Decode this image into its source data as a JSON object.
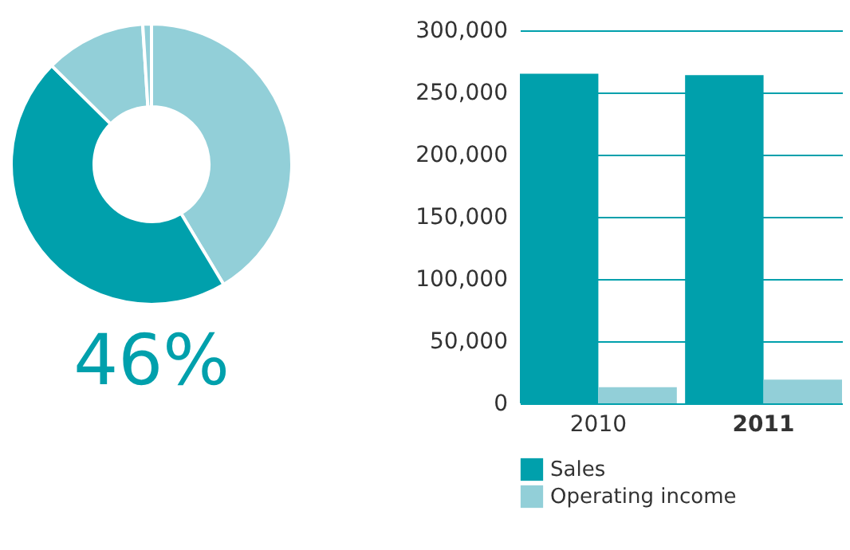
{
  "chart_data": [
    {
      "type": "donut",
      "categories": [
        null,
        null,
        null,
        null
      ],
      "values": [
        41.4,
        46,
        11.6,
        1
      ],
      "colors": [
        "#92cfd8",
        "#00a0ac",
        "#92cfd8",
        "#92cfd8"
      ],
      "annotations": [
        "46%"
      ]
    },
    {
      "type": "bar",
      "categories": [
        "2010",
        "2011"
      ],
      "series": [
        {
          "name": "Sales",
          "color": "#00a0ac",
          "values": [
            265000,
            264000
          ]
        },
        {
          "name": "Operating income",
          "color": "#92cfd8",
          "values": [
            13000,
            19000
          ]
        }
      ],
      "ylim": [
        0,
        300000
      ],
      "yticks": [
        0,
        {
          "value": 50000,
          "label": "50,000"
        },
        {
          "value": 100000,
          "label": "100,000"
        },
        {
          "value": 150000,
          "label": "150,000"
        },
        {
          "value": 200000,
          "label": "200,000"
        },
        {
          "value": 250000,
          "label": "250,000"
        },
        {
          "value": 300000,
          "label": "300,000"
        }
      ],
      "grid": "y",
      "legend": "bottom"
    }
  ]
}
